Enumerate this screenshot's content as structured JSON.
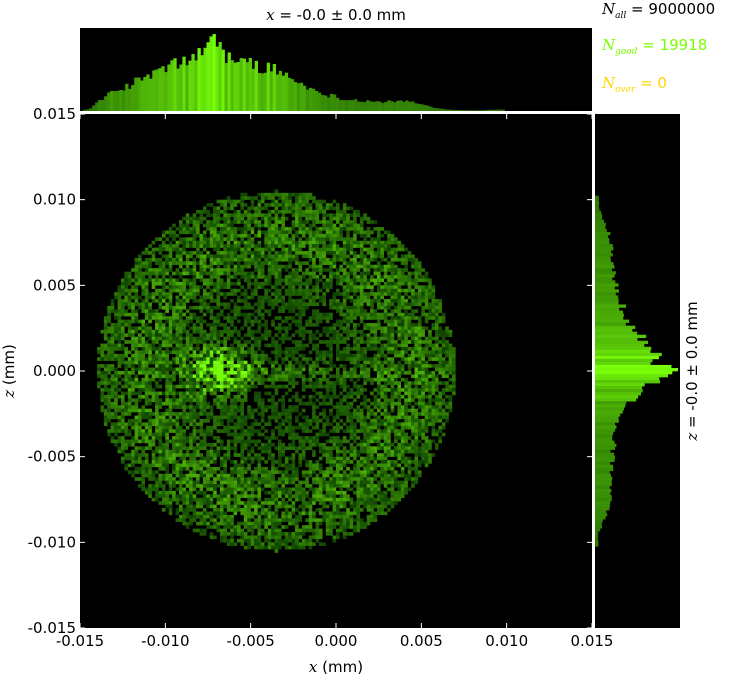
{
  "chart_data": {
    "type": "heatmap",
    "title_top": "-0.0 ± 0.0 mm",
    "title_side": "-0.0 ± 0.0 mm",
    "x_symbol": "x",
    "z_symbol": "z",
    "xlabel_unit": " (mm)",
    "ylabel_unit": " (mm)",
    "xlim": [
      -0.015,
      0.015
    ],
    "ylim": [
      -0.015,
      0.015
    ],
    "x_ticks": [
      "-0.015",
      "-0.010",
      "-0.005",
      "0.000",
      "0.005",
      "0.010",
      "0.015"
    ],
    "y_ticks": [
      "0.015",
      "0.010",
      "0.005",
      "0.000",
      "-0.005",
      "-0.010",
      "-0.015"
    ],
    "colormap": "black-to-green",
    "background_color": "#000000",
    "accent_color": "#7cfc00",
    "stats": {
      "n_all_label": "all",
      "n_all_value": "9000000",
      "n_good_label": "good",
      "n_good_value": "19918",
      "n_good_color": "#7cfc00",
      "n_over_label": "over",
      "n_over_value": "0",
      "n_over_color": "#ffd700"
    },
    "x_histogram": {
      "x": [
        -0.0145,
        -0.0135,
        -0.0125,
        -0.0115,
        -0.0105,
        -0.0095,
        -0.0085,
        -0.0075,
        -0.007,
        -0.0065,
        -0.0055,
        -0.0045,
        -0.0035,
        -0.0025,
        -0.0015,
        -0.0005,
        0.0005,
        0.0015,
        0.0025,
        0.0035,
        0.0045,
        0.0055,
        0.0065,
        0.0075,
        0.0085,
        0.0095
      ],
      "counts": [
        0.02,
        0.2,
        0.3,
        0.42,
        0.52,
        0.62,
        0.7,
        0.82,
        1.0,
        0.74,
        0.66,
        0.6,
        0.55,
        0.42,
        0.3,
        0.22,
        0.16,
        0.14,
        0.12,
        0.13,
        0.12,
        0.06,
        0.02,
        0.01,
        0.01,
        0.02
      ]
    },
    "z_histogram": {
      "z": [
        0.0095,
        0.0085,
        0.0075,
        0.0065,
        0.0055,
        0.0045,
        0.0035,
        0.0025,
        0.0015,
        0.0005,
        0.0,
        -0.0005,
        -0.0015,
        -0.0025,
        -0.0035,
        -0.0045,
        -0.0055,
        -0.0065,
        -0.0075,
        -0.0085,
        -0.0095
      ],
      "counts": [
        0.05,
        0.15,
        0.22,
        0.24,
        0.26,
        0.3,
        0.38,
        0.5,
        0.7,
        0.82,
        1.0,
        0.84,
        0.52,
        0.36,
        0.26,
        0.24,
        0.22,
        0.2,
        0.2,
        0.14,
        0.04
      ]
    },
    "density_features": {
      "ring_center": [
        -0.0035,
        0.0
      ],
      "ring_radius": 0.0105,
      "bright_spot": [
        -0.007,
        0.0
      ],
      "tail_to_x": 0.009
    }
  }
}
